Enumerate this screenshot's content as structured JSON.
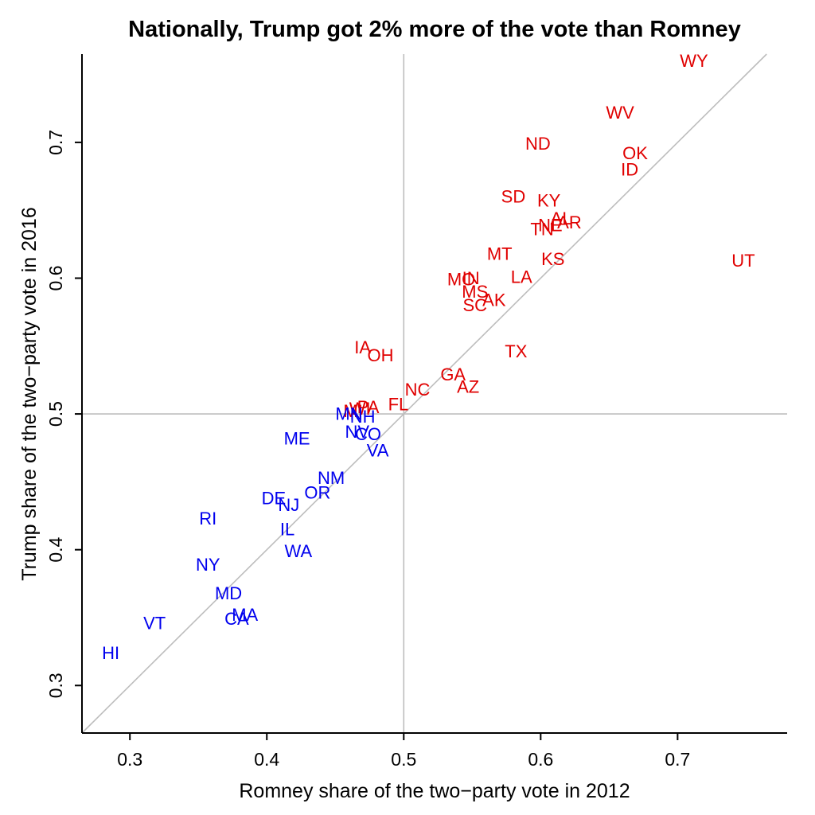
{
  "chart_data": {
    "type": "scatter",
    "title": "Nationally, Trump got 2% more of the vote than Romney",
    "xlabel": "Romney share of the two−party vote in 2012",
    "ylabel": "Trump share of the two−party vote in 2016",
    "xlim": [
      0.265,
      0.78
    ],
    "ylim": [
      0.265,
      0.765
    ],
    "xticks": [
      0.3,
      0.4,
      0.5,
      0.6,
      0.7
    ],
    "yticks": [
      0.3,
      0.4,
      0.5,
      0.6,
      0.7
    ],
    "xtick_labels": [
      "0.3",
      "0.4",
      "0.5",
      "0.6",
      "0.7"
    ],
    "ytick_labels": [
      "0.3",
      "0.4",
      "0.5",
      "0.6",
      "0.7"
    ],
    "reference_lines": {
      "vertical": 0.5,
      "horizontal": 0.5,
      "diagonal": "y = x"
    },
    "colors": {
      "trump_won": "#e00000",
      "clinton_won": "#0000ee",
      "reference": "#bdbdbd"
    },
    "points": [
      {
        "label": "WY",
        "x": 0.712,
        "y": 0.76,
        "winner": "R"
      },
      {
        "label": "WV",
        "x": 0.658,
        "y": 0.722,
        "winner": "R"
      },
      {
        "label": "ND",
        "x": 0.598,
        "y": 0.699,
        "winner": "R"
      },
      {
        "label": "OK",
        "x": 0.669,
        "y": 0.692,
        "winner": "R"
      },
      {
        "label": "ID",
        "x": 0.665,
        "y": 0.68,
        "winner": "R"
      },
      {
        "label": "SD",
        "x": 0.58,
        "y": 0.66,
        "winner": "R"
      },
      {
        "label": "KY",
        "x": 0.606,
        "y": 0.657,
        "winner": "R"
      },
      {
        "label": "AL",
        "x": 0.615,
        "y": 0.644,
        "winner": "R"
      },
      {
        "label": "NE",
        "x": 0.607,
        "y": 0.639,
        "winner": "R"
      },
      {
        "label": "AR",
        "x": 0.621,
        "y": 0.641,
        "winner": "R"
      },
      {
        "label": "TN",
        "x": 0.601,
        "y": 0.636,
        "winner": "R"
      },
      {
        "label": "MT",
        "x": 0.57,
        "y": 0.618,
        "winner": "R"
      },
      {
        "label": "KS",
        "x": 0.609,
        "y": 0.614,
        "winner": "R"
      },
      {
        "label": "UT",
        "x": 0.748,
        "y": 0.613,
        "winner": "R"
      },
      {
        "label": "LA",
        "x": 0.586,
        "y": 0.601,
        "winner": "R"
      },
      {
        "label": "MO",
        "x": 0.542,
        "y": 0.599,
        "winner": "R"
      },
      {
        "label": "IN",
        "x": 0.549,
        "y": 0.6,
        "winner": "R"
      },
      {
        "label": "MS",
        "x": 0.552,
        "y": 0.59,
        "winner": "R"
      },
      {
        "label": "AK",
        "x": 0.566,
        "y": 0.584,
        "winner": "R"
      },
      {
        "label": "SC",
        "x": 0.552,
        "y": 0.58,
        "winner": "R"
      },
      {
        "label": "TX",
        "x": 0.582,
        "y": 0.546,
        "winner": "R"
      },
      {
        "label": "GA",
        "x": 0.536,
        "y": 0.529,
        "winner": "R"
      },
      {
        "label": "AZ",
        "x": 0.547,
        "y": 0.52,
        "winner": "R"
      },
      {
        "label": "NC",
        "x": 0.51,
        "y": 0.518,
        "winner": "R"
      },
      {
        "label": "IA",
        "x": 0.47,
        "y": 0.549,
        "winner": "R"
      },
      {
        "label": "OH",
        "x": 0.483,
        "y": 0.543,
        "winner": "R"
      },
      {
        "label": "FL",
        "x": 0.496,
        "y": 0.507,
        "winner": "R"
      },
      {
        "label": "PA",
        "x": 0.474,
        "y": 0.505,
        "winner": "R"
      },
      {
        "label": "WI",
        "x": 0.468,
        "y": 0.504,
        "winner": "R"
      },
      {
        "label": "MI",
        "x": 0.463,
        "y": 0.502,
        "winner": "R"
      },
      {
        "label": "MN",
        "x": 0.46,
        "y": 0.5,
        "winner": "D"
      },
      {
        "label": "NH",
        "x": 0.47,
        "y": 0.498,
        "winner": "D"
      },
      {
        "label": "NV",
        "x": 0.466,
        "y": 0.487,
        "winner": "D"
      },
      {
        "label": "CO",
        "x": 0.474,
        "y": 0.485,
        "winner": "D"
      },
      {
        "label": "VA",
        "x": 0.481,
        "y": 0.473,
        "winner": "D"
      },
      {
        "label": "ME",
        "x": 0.422,
        "y": 0.482,
        "winner": "D"
      },
      {
        "label": "NM",
        "x": 0.447,
        "y": 0.453,
        "winner": "D"
      },
      {
        "label": "OR",
        "x": 0.437,
        "y": 0.442,
        "winner": "D"
      },
      {
        "label": "DE",
        "x": 0.405,
        "y": 0.438,
        "winner": "D"
      },
      {
        "label": "NJ",
        "x": 0.416,
        "y": 0.433,
        "winner": "D"
      },
      {
        "label": "RI",
        "x": 0.357,
        "y": 0.423,
        "winner": "D"
      },
      {
        "label": "IL",
        "x": 0.415,
        "y": 0.415,
        "winner": "D"
      },
      {
        "label": "WA",
        "x": 0.423,
        "y": 0.399,
        "winner": "D"
      },
      {
        "label": "NY",
        "x": 0.357,
        "y": 0.389,
        "winner": "D"
      },
      {
        "label": "MD",
        "x": 0.372,
        "y": 0.368,
        "winner": "D"
      },
      {
        "label": "MA",
        "x": 0.384,
        "y": 0.352,
        "winner": "D"
      },
      {
        "label": "CA",
        "x": 0.378,
        "y": 0.349,
        "winner": "D"
      },
      {
        "label": "VT",
        "x": 0.318,
        "y": 0.346,
        "winner": "D"
      },
      {
        "label": "HI",
        "x": 0.286,
        "y": 0.324,
        "winner": "D"
      }
    ]
  }
}
